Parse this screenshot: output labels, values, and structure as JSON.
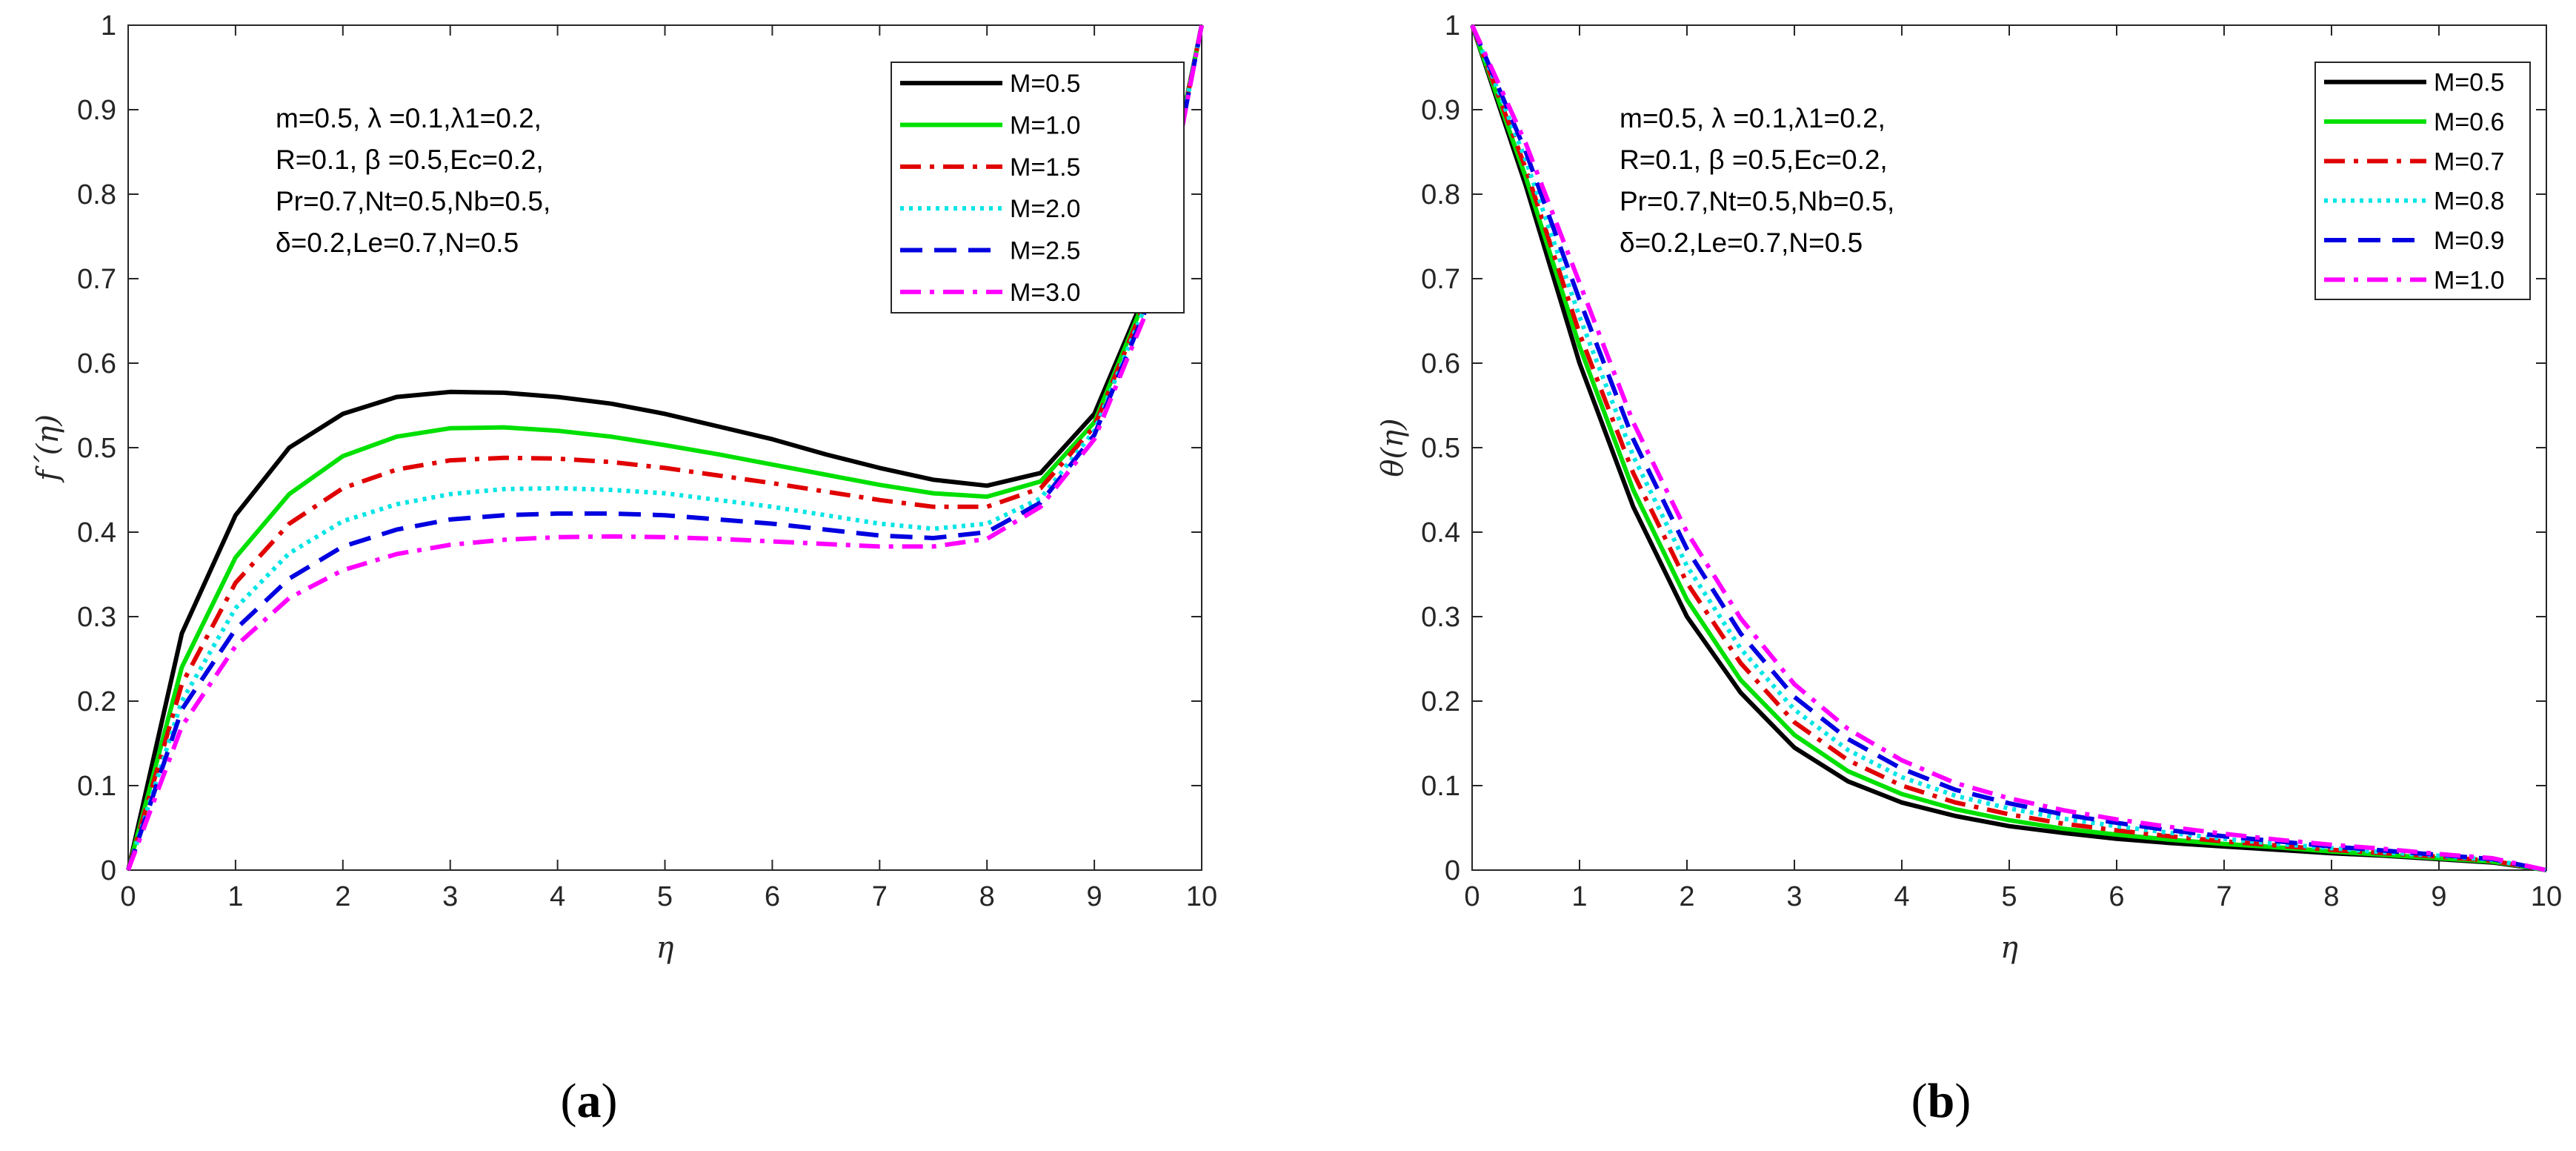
{
  "chart_data": [
    {
      "type": "line",
      "panel_label": "(a)",
      "caption_bold": "a",
      "xlabel": "η",
      "ylabel": "f´(η)",
      "xlim": [
        0,
        10
      ],
      "ylim": [
        0,
        1
      ],
      "xticks": [
        "0",
        "1",
        "2",
        "3",
        "4",
        "5",
        "6",
        "7",
        "8",
        "9",
        "10"
      ],
      "yticks": [
        "0",
        "0.1",
        "0.2",
        "0.3",
        "0.4",
        "0.5",
        "0.6",
        "0.7",
        "0.8",
        "0.9",
        "1"
      ],
      "legend_position": "top-right",
      "annotation": [
        "m=0.5, λ =0.1,λ1=0.2,",
        "R=0.1, β =0.5,Ec=0.2,",
        "Pr=0.7,Nt=0.5,Nb=0.5,",
        "δ=0.2,Le=0.7,N=0.5"
      ],
      "x": [
        0,
        0.5,
        1,
        1.5,
        2,
        2.5,
        3,
        3.5,
        4,
        4.5,
        5,
        5.5,
        6,
        6.5,
        7,
        7.5,
        8,
        8.5,
        9,
        9.5,
        10
      ],
      "series": [
        {
          "name": "M=0.5",
          "color": "#000000",
          "dash": "",
          "values": [
            0,
            0.28,
            0.42,
            0.5,
            0.54,
            0.56,
            0.566,
            0.565,
            0.56,
            0.552,
            0.54,
            0.525,
            0.51,
            0.492,
            0.476,
            0.462,
            0.455,
            0.47,
            0.54,
            0.69,
            1
          ]
        },
        {
          "name": "M=1.0",
          "color": "#00e000",
          "dash": "",
          "values": [
            0,
            0.24,
            0.37,
            0.445,
            0.49,
            0.513,
            0.523,
            0.524,
            0.52,
            0.513,
            0.503,
            0.492,
            0.48,
            0.468,
            0.456,
            0.446,
            0.442,
            0.46,
            0.53,
            0.685,
            1
          ]
        },
        {
          "name": "M=1.5",
          "color": "#e00000",
          "dash": "28,12,6,12",
          "values": [
            0,
            0.22,
            0.34,
            0.41,
            0.452,
            0.474,
            0.485,
            0.488,
            0.487,
            0.483,
            0.476,
            0.467,
            0.458,
            0.448,
            0.438,
            0.43,
            0.43,
            0.452,
            0.525,
            0.68,
            1
          ]
        },
        {
          "name": "M=2.0",
          "color": "#00e5e5",
          "dash": "5,7",
          "values": [
            0,
            0.2,
            0.31,
            0.375,
            0.413,
            0.433,
            0.445,
            0.451,
            0.452,
            0.45,
            0.446,
            0.438,
            0.43,
            0.42,
            0.41,
            0.404,
            0.41,
            0.44,
            0.52,
            0.675,
            1
          ]
        },
        {
          "name": "M=2.5",
          "color": "#0000e0",
          "dash": "30,16",
          "values": [
            0,
            0.19,
            0.285,
            0.345,
            0.383,
            0.403,
            0.415,
            0.42,
            0.422,
            0.422,
            0.42,
            0.415,
            0.41,
            0.403,
            0.396,
            0.393,
            0.4,
            0.435,
            0.515,
            0.67,
            1
          ]
        },
        {
          "name": "M=3.0",
          "color": "#ff00ff",
          "dash": "28,12,6,12",
          "values": [
            0,
            0.17,
            0.265,
            0.322,
            0.355,
            0.374,
            0.385,
            0.391,
            0.394,
            0.395,
            0.394,
            0.392,
            0.389,
            0.386,
            0.383,
            0.383,
            0.392,
            0.43,
            0.51,
            0.665,
            1
          ]
        }
      ]
    },
    {
      "type": "line",
      "panel_label": "(b)",
      "caption_bold": "b",
      "xlabel": "η",
      "ylabel": "θ(η)",
      "xlim": [
        0,
        10
      ],
      "ylim": [
        0,
        1
      ],
      "xticks": [
        "0",
        "1",
        "2",
        "3",
        "4",
        "5",
        "6",
        "7",
        "8",
        "9",
        "10"
      ],
      "yticks": [
        "0",
        "0.1",
        "0.2",
        "0.3",
        "0.4",
        "0.5",
        "0.6",
        "0.7",
        "0.8",
        "0.9",
        "1"
      ],
      "legend_position": "top-right",
      "annotation": [
        "m=0.5, λ =0.1,λ1=0.2,",
        "R=0.1, β =0.5,Ec=0.2,",
        "Pr=0.7,Nt=0.5,Nb=0.5,",
        "δ=0.2,Le=0.7,N=0.5"
      ],
      "x": [
        0,
        0.5,
        1,
        1.5,
        2,
        2.5,
        3,
        3.5,
        4,
        4.5,
        5,
        5.5,
        6,
        6.5,
        7,
        7.5,
        8,
        8.5,
        9,
        9.5,
        10
      ],
      "series": [
        {
          "name": "M=0.5",
          "color": "#000000",
          "dash": "",
          "values": [
            1,
            0.81,
            0.6,
            0.43,
            0.3,
            0.21,
            0.145,
            0.105,
            0.08,
            0.064,
            0.052,
            0.044,
            0.037,
            0.032,
            0.028,
            0.024,
            0.02,
            0.017,
            0.013,
            0.009,
            0
          ]
        },
        {
          "name": "M=0.6",
          "color": "#00e000",
          "dash": "",
          "values": [
            1,
            0.82,
            0.62,
            0.45,
            0.32,
            0.225,
            0.16,
            0.117,
            0.09,
            0.072,
            0.059,
            0.049,
            0.042,
            0.036,
            0.031,
            0.027,
            0.022,
            0.018,
            0.014,
            0.01,
            0
          ]
        },
        {
          "name": "M=0.7",
          "color": "#e00000",
          "dash": "28,12,6,12",
          "values": [
            1,
            0.83,
            0.635,
            0.47,
            0.34,
            0.245,
            0.175,
            0.13,
            0.1,
            0.08,
            0.066,
            0.055,
            0.047,
            0.04,
            0.034,
            0.029,
            0.024,
            0.02,
            0.016,
            0.011,
            0
          ]
        },
        {
          "name": "M=0.8",
          "color": "#00e5e5",
          "dash": "5,7",
          "values": [
            1,
            0.84,
            0.655,
            0.49,
            0.36,
            0.262,
            0.19,
            0.142,
            0.11,
            0.088,
            0.073,
            0.061,
            0.052,
            0.044,
            0.037,
            0.031,
            0.026,
            0.021,
            0.017,
            0.012,
            0
          ]
        },
        {
          "name": "M=0.9",
          "color": "#0000e0",
          "dash": "30,16",
          "values": [
            1,
            0.85,
            0.675,
            0.51,
            0.38,
            0.28,
            0.205,
            0.155,
            0.12,
            0.095,
            0.079,
            0.066,
            0.056,
            0.047,
            0.04,
            0.034,
            0.028,
            0.023,
            0.018,
            0.013,
            0
          ]
        },
        {
          "name": "M=1.0",
          "color": "#ff00ff",
          "dash": "28,12,6,12",
          "values": [
            1,
            0.86,
            0.695,
            0.53,
            0.4,
            0.298,
            0.22,
            0.167,
            0.13,
            0.103,
            0.085,
            0.071,
            0.06,
            0.051,
            0.043,
            0.036,
            0.03,
            0.025,
            0.019,
            0.014,
            0
          ]
        }
      ]
    }
  ]
}
